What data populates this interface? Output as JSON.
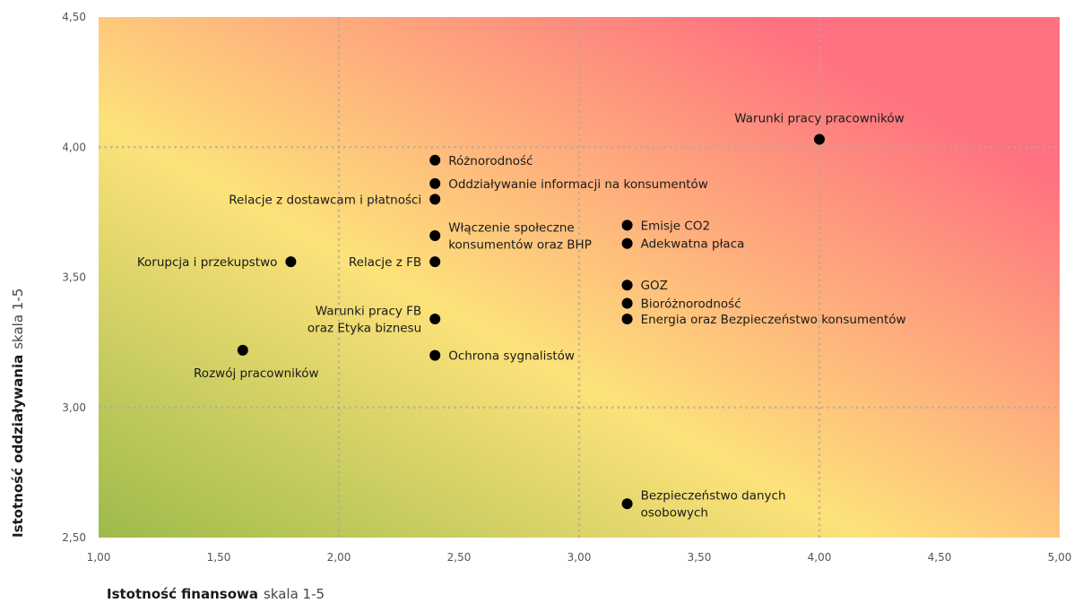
{
  "chart_data": {
    "type": "scatter",
    "title": "",
    "xlabel": "Istotność finansowa",
    "xlabel_suffix": "skala 1-5",
    "ylabel": "Istotność oddziaływania",
    "ylabel_suffix": "skala 1-5",
    "xlim": [
      1.0,
      5.0
    ],
    "ylim": [
      2.5,
      4.5
    ],
    "x_ticks": [
      "1,00",
      "1,50",
      "2,00",
      "2,50",
      "3,00",
      "3,50",
      "4,00",
      "4,50",
      "5,00"
    ],
    "x_tick_values": [
      1.0,
      1.5,
      2.0,
      2.5,
      3.0,
      3.5,
      4.0,
      4.5,
      5.0
    ],
    "y_ticks": [
      "2,50",
      "3,00",
      "3,50",
      "4,00",
      "4,50"
    ],
    "y_tick_values": [
      2.5,
      3.0,
      3.5,
      4.0,
      4.5
    ],
    "grid": {
      "dotted_x": [
        2.0,
        3.0,
        4.0
      ],
      "dotted_y": [
        3.0,
        4.0
      ]
    },
    "background_colors": {
      "low": "#9dbb4a",
      "mid": "#fde27a",
      "high": "#ff7080"
    },
    "point_color": "#000000",
    "points": [
      {
        "label": [
          "Warunki pracy pracowników"
        ],
        "x": 4.0,
        "y": 4.03,
        "anchor": "above"
      },
      {
        "label": [
          "Różnorodność"
        ],
        "x": 2.4,
        "y": 3.95,
        "anchor": "right"
      },
      {
        "label": [
          "Oddziaływanie informacji na konsumentów"
        ],
        "x": 2.4,
        "y": 3.86,
        "anchor": "right"
      },
      {
        "label": [
          "Relacje z dostawcam i płatności"
        ],
        "x": 2.4,
        "y": 3.8,
        "anchor": "left"
      },
      {
        "label": [
          "Włączenie społeczne",
          "konsumentów oraz BHP"
        ],
        "x": 2.4,
        "y": 3.66,
        "anchor": "right"
      },
      {
        "label": [
          "Relacje z FB"
        ],
        "x": 2.4,
        "y": 3.56,
        "anchor": "left"
      },
      {
        "label": [
          "Korupcja i przekupstwo"
        ],
        "x": 1.8,
        "y": 3.56,
        "anchor": "left"
      },
      {
        "label": [
          "Warunki pracy FB",
          "oraz Etyka biznesu"
        ],
        "x": 2.4,
        "y": 3.34,
        "anchor": "left"
      },
      {
        "label": [
          "Ochrona sygnalistów"
        ],
        "x": 2.4,
        "y": 3.2,
        "anchor": "right"
      },
      {
        "label": [
          "Rozwój pracowników"
        ],
        "x": 1.6,
        "y": 3.22,
        "anchor": "below-right"
      },
      {
        "label": [
          "Emisje CO2"
        ],
        "x": 3.2,
        "y": 3.7,
        "anchor": "right"
      },
      {
        "label": [
          "Adekwatna płaca"
        ],
        "x": 3.2,
        "y": 3.63,
        "anchor": "right"
      },
      {
        "label": [
          "GOZ"
        ],
        "x": 3.2,
        "y": 3.47,
        "anchor": "right"
      },
      {
        "label": [
          "Bioróżnorodność"
        ],
        "x": 3.2,
        "y": 3.4,
        "anchor": "right"
      },
      {
        "label": [
          "Energia oraz Bezpieczeństwo konsumentów"
        ],
        "x": 3.2,
        "y": 3.34,
        "anchor": "right"
      },
      {
        "label": [
          "Bezpieczeństwo danych",
          "osobowych"
        ],
        "x": 3.2,
        "y": 2.63,
        "anchor": "right"
      }
    ]
  }
}
